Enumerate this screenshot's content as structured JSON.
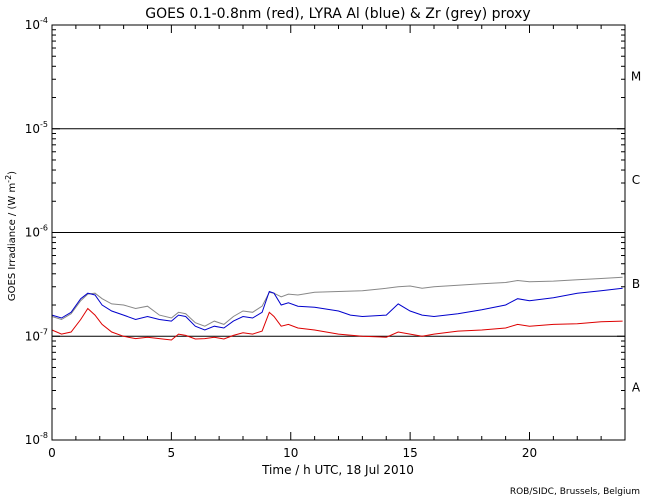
{
  "chart_data": {
    "type": "line",
    "title": "GOES 0.1-0.8nm (red), LYRA Al (blue) & Zr (grey) proxy",
    "xlabel": "Time / h UTC, 18 Jul 2010",
    "ylabel": "GOES Irradiance / (W m",
    "ylabel_exp": "-2",
    "ylabel_close": ")",
    "xlim": [
      0,
      24
    ],
    "ylim": [
      1e-08,
      0.0001
    ],
    "yscale": "log",
    "x_ticks": [
      "0",
      "5",
      "10",
      "15",
      "20"
    ],
    "x_tick_values": [
      0,
      5,
      10,
      15,
      20
    ],
    "y_ticks": [
      {
        "base": "10",
        "exp": "-8",
        "value": 1e-08
      },
      {
        "base": "10",
        "exp": "-7",
        "value": 1e-07
      },
      {
        "base": "10",
        "exp": "-6",
        "value": 1e-06
      },
      {
        "base": "10",
        "exp": "-5",
        "value": 1e-05
      },
      {
        "base": "10",
        "exp": "-4",
        "value": 0.0001
      }
    ],
    "flare_class_lines": [
      1e-07,
      1e-06,
      1e-05
    ],
    "flare_classes": [
      {
        "label": "A",
        "value": 3.2e-08
      },
      {
        "label": "B",
        "value": 3.2e-07
      },
      {
        "label": "C",
        "value": 3.2e-06
      },
      {
        "label": "M",
        "value": 3.2e-05
      }
    ],
    "series": [
      {
        "color": "#888888",
        "x": [
          0,
          0.4,
          0.8,
          1.2,
          1.5,
          1.8,
          2.1,
          2.5,
          3.0,
          3.5,
          4.0,
          4.5,
          5.0,
          5.3,
          5.6,
          6.0,
          6.4,
          6.8,
          7.2,
          7.6,
          8.0,
          8.4,
          8.8,
          9.1,
          9.3,
          9.6,
          9.9,
          10.3,
          11,
          12,
          13,
          14,
          14.5,
          15,
          15.5,
          16,
          17,
          18,
          19,
          19.5,
          20,
          21,
          22,
          23,
          23.9
        ],
        "y": [
          1.55e-07,
          1.45e-07,
          1.65e-07,
          2.2e-07,
          2.55e-07,
          2.6e-07,
          2.3e-07,
          2.05e-07,
          2e-07,
          1.85e-07,
          1.95e-07,
          1.6e-07,
          1.5e-07,
          1.7e-07,
          1.65e-07,
          1.35e-07,
          1.25e-07,
          1.4e-07,
          1.3e-07,
          1.55e-07,
          1.75e-07,
          1.7e-07,
          1.95e-07,
          2.65e-07,
          2.6e-07,
          2.4e-07,
          2.55e-07,
          2.5e-07,
          2.65e-07,
          2.7e-07,
          2.75e-07,
          2.9e-07,
          3e-07,
          3.05e-07,
          2.9e-07,
          3e-07,
          3.1e-07,
          3.2e-07,
          3.3e-07,
          3.45e-07,
          3.35e-07,
          3.4e-07,
          3.5e-07,
          3.6e-07,
          3.7e-07
        ]
      },
      {
        "color": "#0000cc",
        "x": [
          0,
          0.4,
          0.8,
          1.2,
          1.5,
          1.8,
          2.1,
          2.5,
          3.0,
          3.5,
          4.0,
          4.5,
          5.0,
          5.3,
          5.6,
          6.0,
          6.4,
          6.8,
          7.2,
          7.6,
          8.0,
          8.4,
          8.8,
          9.1,
          9.3,
          9.6,
          9.9,
          10.3,
          11,
          12,
          12.5,
          13,
          14,
          14.5,
          15,
          15.5,
          16,
          17,
          18,
          19,
          19.5,
          20,
          21,
          22,
          23,
          23.9
        ],
        "y": [
          1.6e-07,
          1.5e-07,
          1.7e-07,
          2.3e-07,
          2.6e-07,
          2.5e-07,
          2e-07,
          1.75e-07,
          1.6e-07,
          1.45e-07,
          1.55e-07,
          1.45e-07,
          1.4e-07,
          1.6e-07,
          1.55e-07,
          1.25e-07,
          1.15e-07,
          1.25e-07,
          1.2e-07,
          1.4e-07,
          1.55e-07,
          1.5e-07,
          1.7e-07,
          2.7e-07,
          2.6e-07,
          2e-07,
          2.1e-07,
          1.95e-07,
          1.9e-07,
          1.75e-07,
          1.6e-07,
          1.55e-07,
          1.6e-07,
          2.05e-07,
          1.75e-07,
          1.6e-07,
          1.55e-07,
          1.65e-07,
          1.8e-07,
          2e-07,
          2.3e-07,
          2.2e-07,
          2.35e-07,
          2.6e-07,
          2.75e-07,
          2.9e-07
        ]
      },
      {
        "color": "#dd0000",
        "x": [
          0,
          0.4,
          0.8,
          1.2,
          1.5,
          1.8,
          2.1,
          2.5,
          3.0,
          3.5,
          4.0,
          4.5,
          5.0,
          5.3,
          5.6,
          6.0,
          6.4,
          6.8,
          7.2,
          7.6,
          8.0,
          8.4,
          8.8,
          9.1,
          9.3,
          9.6,
          9.9,
          10.3,
          11,
          12,
          13,
          14,
          14.5,
          15,
          15.5,
          16,
          17,
          18,
          19,
          19.5,
          20,
          21,
          22,
          23,
          23.9
        ],
        "y": [
          1.15e-07,
          1.05e-07,
          1.1e-07,
          1.45e-07,
          1.85e-07,
          1.6e-07,
          1.3e-07,
          1.1e-07,
          1e-07,
          9.5e-08,
          9.8e-08,
          9.5e-08,
          9.2e-08,
          1.05e-07,
          1.02e-07,
          9.4e-08,
          9.5e-08,
          9.8e-08,
          9.4e-08,
          1.02e-07,
          1.08e-07,
          1.05e-07,
          1.12e-07,
          1.7e-07,
          1.55e-07,
          1.25e-07,
          1.3e-07,
          1.2e-07,
          1.15e-07,
          1.05e-07,
          1e-07,
          9.8e-08,
          1.1e-07,
          1.05e-07,
          1e-07,
          1.05e-07,
          1.12e-07,
          1.15e-07,
          1.2e-07,
          1.3e-07,
          1.25e-07,
          1.3e-07,
          1.32e-07,
          1.38e-07,
          1.4e-07
        ]
      }
    ]
  },
  "credit": "ROB/SIDC, Brussels, Belgium"
}
